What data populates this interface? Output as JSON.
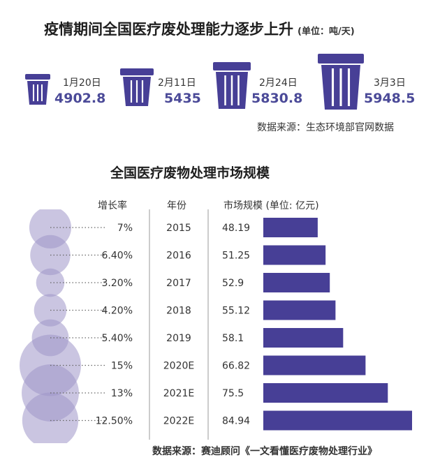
{
  "top_section": {
    "title": "疫情期间全国医疗废处理能力逐步上升",
    "unit": "(单位：吨/天)",
    "items": [
      {
        "date": "1月20日",
        "value": "4902.8"
      },
      {
        "date": "2月11日",
        "value": "5435"
      },
      {
        "date": "2月24日",
        "value": "5830.8"
      },
      {
        "date": "3月3日",
        "value": "5948.5"
      }
    ],
    "source": "数据来源：生态环境部官网数据"
  },
  "chart_data": {
    "type": "bar",
    "title": "全国医疗废物处理市场规模",
    "orientation": "horizontal",
    "columns": [
      "增长率",
      "年份",
      "市场规模 (单位: 亿元)"
    ],
    "categories": [
      "2015",
      "2016",
      "2017",
      "2018",
      "2019",
      "2020E",
      "2021E",
      "2022E"
    ],
    "growth_labels": [
      "7%",
      "6.40%",
      "3.20%",
      "4.20%",
      "5.40%",
      "15%",
      "13%",
      "12.50%"
    ],
    "growth_values": [
      7,
      6.4,
      3.2,
      4.2,
      5.4,
      15,
      13,
      12.5
    ],
    "values": [
      48.19,
      51.25,
      52.9,
      55.12,
      58.1,
      66.82,
      75.5,
      84.94
    ],
    "colors": {
      "bar": "#473f96",
      "bubble": "#9e95c8",
      "value_text": "#4b4a98"
    }
  },
  "footer": {
    "source": "数据来源：赛迪顾问《一文看懂医疗废物处理行业》"
  }
}
